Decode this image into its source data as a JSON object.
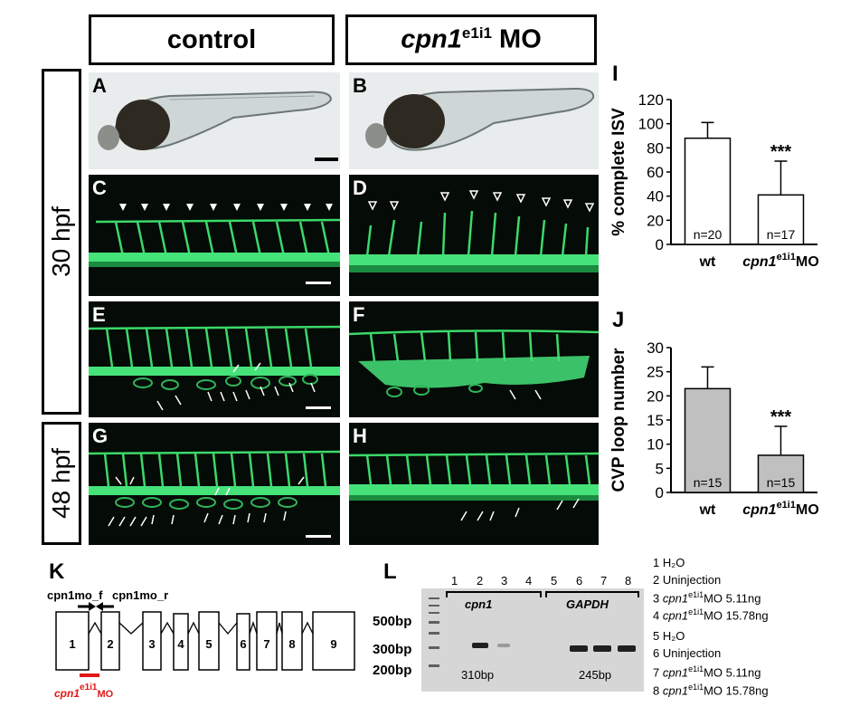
{
  "headers": {
    "control": "control",
    "mo_prefix": "cpn1",
    "mo_sup": "e1i1",
    "mo_suffix": " MO",
    "hpf30": "30 hpf",
    "hpf48": "48 hpf"
  },
  "panels": {
    "A": "A",
    "B": "B",
    "C": "C",
    "D": "D",
    "E": "E",
    "F": "F",
    "G": "G",
    "H": "H"
  },
  "chart_data": [
    {
      "panel": "I",
      "type": "bar",
      "ylabel": "% complete ISV",
      "ylim": [
        0,
        120
      ],
      "yticks": [
        0,
        20,
        40,
        60,
        80,
        100,
        120
      ],
      "categories": [
        "wt",
        "cpn1e1i1MO"
      ],
      "category_labels": [
        {
          "text": "wt"
        },
        {
          "prefix": "cpn1",
          "sup": "e1i1",
          "suffix": "MO"
        }
      ],
      "values": [
        88,
        41
      ],
      "errors": [
        13,
        28
      ],
      "n_labels": [
        "n=20",
        "n=17"
      ],
      "significance": [
        "",
        "***"
      ],
      "bar_color": "#ffffff",
      "grid": false
    },
    {
      "panel": "J",
      "type": "bar",
      "ylabel": "CVP loop number",
      "ylim": [
        0,
        30
      ],
      "yticks": [
        0,
        5,
        10,
        15,
        20,
        25,
        30
      ],
      "categories": [
        "wt",
        "cpn1e1i1MO"
      ],
      "category_labels": [
        {
          "text": "wt"
        },
        {
          "prefix": "cpn1",
          "sup": "e1i1",
          "suffix": "MO"
        }
      ],
      "values": [
        21.5,
        7.7
      ],
      "errors": [
        4.5,
        6.0
      ],
      "n_labels": [
        "n=15",
        "n=15"
      ],
      "significance": [
        "",
        "***"
      ],
      "bar_color": "#c0c0c0",
      "grid": false
    }
  ],
  "panel_k": {
    "letter": "K",
    "primer_f": "cpn1mo_f",
    "primer_r": "cpn1mo_r",
    "exons": [
      "1",
      "2",
      "3",
      "4",
      "5",
      "6",
      "7",
      "8",
      "9"
    ],
    "mo_prefix": "cpn1",
    "mo_sup": "e1i1",
    "mo_suffix": "MO",
    "mo_color": "#e01818"
  },
  "panel_l": {
    "letter": "L",
    "lanes": [
      "1",
      "2",
      "3",
      "4",
      "5",
      "6",
      "7",
      "8"
    ],
    "gene1": "cpn1",
    "gene2": "GAPDH",
    "ladder": [
      "500bp",
      "300bp",
      "200bp"
    ],
    "size1": "310bp",
    "size2": "245bp",
    "legend": [
      {
        "num": "1",
        "text": "H₂O"
      },
      {
        "num": "2",
        "text": "Uninjection"
      },
      {
        "num": "3",
        "prefix": "cpn1",
        "sup": "e1i1",
        "suffix": "MO 5.11ng"
      },
      {
        "num": "4",
        "prefix": "cpn1",
        "sup": "e1i1",
        "suffix": "MO 15.78ng"
      },
      {
        "num": "5",
        "text": "H₂O"
      },
      {
        "num": "6",
        "text": "Uninjection"
      },
      {
        "num": "7",
        "prefix": "cpn1",
        "sup": "e1i1",
        "suffix": "MO 5.11ng"
      },
      {
        "num": "8",
        "prefix": "cpn1",
        "sup": "e1i1",
        "suffix": "MO 15.78ng"
      }
    ]
  }
}
